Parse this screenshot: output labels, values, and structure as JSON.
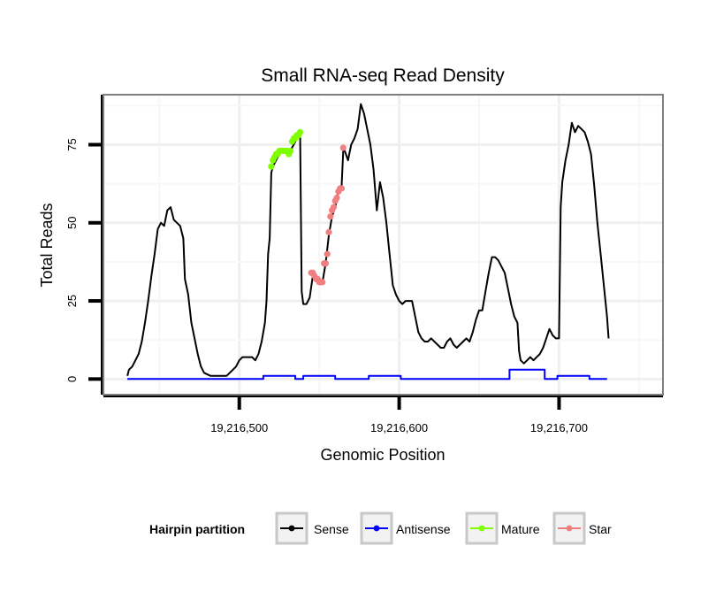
{
  "chart_data": {
    "type": "line",
    "title": "Small RNA-seq Read Density",
    "xlabel": "Genomic Position",
    "ylabel": "Total Reads",
    "xlim": [
      19216415,
      19216765
    ],
    "ylim": [
      -5,
      91
    ],
    "x_ticks": [
      19216500,
      19216600,
      19216700
    ],
    "x_tick_labels": [
      "19,216,500",
      "19,216,600",
      "19,216,700"
    ],
    "y_ticks": [
      0,
      25,
      50,
      75
    ],
    "y_tick_labels": [
      "0",
      "25",
      "50",
      "75"
    ],
    "grid": true,
    "legend": {
      "title": "Hairpin partition",
      "position": "bottom",
      "entries": [
        {
          "label": "Sense",
          "color": "#000000"
        },
        {
          "label": "Antisense",
          "color": "#0000ff"
        },
        {
          "label": "Mature",
          "color": "#7fff00"
        },
        {
          "label": "Star",
          "color": "#f08080"
        }
      ]
    },
    "series": [
      {
        "name": "Sense",
        "color": "#000000",
        "style": "line",
        "points": [
          [
            19216430,
            1
          ],
          [
            19216431,
            3
          ],
          [
            19216433,
            4
          ],
          [
            19216435,
            6
          ],
          [
            19216437,
            8
          ],
          [
            19216439,
            12
          ],
          [
            19216441,
            18
          ],
          [
            19216443,
            25
          ],
          [
            19216445,
            33
          ],
          [
            19216447,
            40
          ],
          [
            19216449,
            48
          ],
          [
            19216451,
            50
          ],
          [
            19216453,
            49
          ],
          [
            19216455,
            54
          ],
          [
            19216457,
            55
          ],
          [
            19216459,
            51
          ],
          [
            19216461,
            50
          ],
          [
            19216463,
            49
          ],
          [
            19216465,
            45
          ],
          [
            19216466,
            32
          ],
          [
            19216468,
            27
          ],
          [
            19216470,
            18
          ],
          [
            19216472,
            13
          ],
          [
            19216474,
            8
          ],
          [
            19216476,
            4
          ],
          [
            19216478,
            2
          ],
          [
            19216482,
            1
          ],
          [
            19216488,
            1
          ],
          [
            19216492,
            1
          ],
          [
            19216494,
            2
          ],
          [
            19216496,
            3
          ],
          [
            19216498,
            4
          ],
          [
            19216500,
            6
          ],
          [
            19216502,
            7
          ],
          [
            19216506,
            7
          ],
          [
            19216508,
            7
          ],
          [
            19216510,
            6
          ],
          [
            19216512,
            8
          ],
          [
            19216514,
            12
          ],
          [
            19216516,
            18
          ],
          [
            19216517,
            25
          ],
          [
            19216518,
            40
          ],
          [
            19216519,
            45
          ],
          [
            19216520,
            66
          ],
          [
            19216521,
            68
          ],
          [
            19216523,
            70
          ],
          [
            19216525,
            72
          ],
          [
            19216527,
            73
          ],
          [
            19216529,
            73
          ],
          [
            19216531,
            73
          ],
          [
            19216533,
            74
          ],
          [
            19216535,
            76
          ],
          [
            19216537,
            78
          ],
          [
            19216538,
            79
          ],
          [
            19216539,
            28
          ],
          [
            19216540,
            24
          ],
          [
            19216542,
            24
          ],
          [
            19216544,
            26
          ],
          [
            19216546,
            33
          ],
          [
            19216548,
            32
          ],
          [
            19216550,
            31
          ],
          [
            19216552,
            31
          ],
          [
            19216554,
            37
          ],
          [
            19216556,
            46
          ],
          [
            19216558,
            52
          ],
          [
            19216560,
            55
          ],
          [
            19216562,
            60
          ],
          [
            19216564,
            62
          ],
          [
            19216565,
            73
          ],
          [
            19216566,
            73
          ],
          [
            19216568,
            70
          ],
          [
            19216570,
            75
          ],
          [
            19216572,
            77
          ],
          [
            19216574,
            80
          ],
          [
            19216576,
            88
          ],
          [
            19216578,
            85
          ],
          [
            19216580,
            80
          ],
          [
            19216582,
            75
          ],
          [
            19216584,
            67
          ],
          [
            19216586,
            54
          ],
          [
            19216588,
            63
          ],
          [
            19216590,
            58
          ],
          [
            19216592,
            50
          ],
          [
            19216594,
            40
          ],
          [
            19216596,
            30
          ],
          [
            19216598,
            27
          ],
          [
            19216600,
            25
          ],
          [
            19216602,
            24
          ],
          [
            19216604,
            25
          ],
          [
            19216608,
            25
          ],
          [
            19216610,
            20
          ],
          [
            19216612,
            15
          ],
          [
            19216614,
            13
          ],
          [
            19216616,
            12
          ],
          [
            19216618,
            12
          ],
          [
            19216620,
            13
          ],
          [
            19216622,
            12
          ],
          [
            19216624,
            11
          ],
          [
            19216626,
            10
          ],
          [
            19216628,
            10
          ],
          [
            19216630,
            12
          ],
          [
            19216632,
            13
          ],
          [
            19216634,
            11
          ],
          [
            19216636,
            10
          ],
          [
            19216638,
            11
          ],
          [
            19216640,
            12
          ],
          [
            19216642,
            13
          ],
          [
            19216644,
            12
          ],
          [
            19216646,
            15
          ],
          [
            19216648,
            19
          ],
          [
            19216650,
            22
          ],
          [
            19216652,
            22
          ],
          [
            19216654,
            28
          ],
          [
            19216656,
            34
          ],
          [
            19216658,
            39
          ],
          [
            19216660,
            39
          ],
          [
            19216662,
            38
          ],
          [
            19216664,
            36
          ],
          [
            19216666,
            34
          ],
          [
            19216668,
            29
          ],
          [
            19216670,
            24
          ],
          [
            19216672,
            20
          ],
          [
            19216674,
            18
          ],
          [
            19216675,
            9
          ],
          [
            19216676,
            6
          ],
          [
            19216678,
            5
          ],
          [
            19216680,
            6
          ],
          [
            19216682,
            7
          ],
          [
            19216684,
            6
          ],
          [
            19216686,
            7
          ],
          [
            19216688,
            8
          ],
          [
            19216690,
            10
          ],
          [
            19216692,
            13
          ],
          [
            19216694,
            16
          ],
          [
            19216696,
            14
          ],
          [
            19216698,
            13
          ],
          [
            19216700,
            13
          ],
          [
            19216701,
            55
          ],
          [
            19216702,
            63
          ],
          [
            19216704,
            70
          ],
          [
            19216706,
            75
          ],
          [
            19216708,
            82
          ],
          [
            19216710,
            79
          ],
          [
            19216712,
            81
          ],
          [
            19216714,
            80
          ],
          [
            19216716,
            79
          ],
          [
            19216718,
            76
          ],
          [
            19216720,
            72
          ],
          [
            19216722,
            62
          ],
          [
            19216724,
            50
          ],
          [
            19216726,
            40
          ],
          [
            19216728,
            30
          ],
          [
            19216730,
            20
          ],
          [
            19216731,
            13
          ]
        ]
      },
      {
        "name": "Antisense",
        "color": "#0000ff",
        "style": "step",
        "points": [
          [
            19216430,
            0
          ],
          [
            19216514,
            0
          ],
          [
            19216515,
            1
          ],
          [
            19216534,
            1
          ],
          [
            19216535,
            0
          ],
          [
            19216539,
            0
          ],
          [
            19216540,
            1
          ],
          [
            19216559,
            1
          ],
          [
            19216560,
            0
          ],
          [
            19216580,
            0
          ],
          [
            19216581,
            1
          ],
          [
            19216600,
            1
          ],
          [
            19216601,
            0
          ],
          [
            19216668,
            0
          ],
          [
            19216669,
            3
          ],
          [
            19216690,
            3
          ],
          [
            19216691,
            0
          ],
          [
            19216698,
            0
          ],
          [
            19216699,
            1
          ],
          [
            19216718,
            1
          ],
          [
            19216719,
            0
          ],
          [
            19216730,
            0
          ]
        ]
      },
      {
        "name": "Mature",
        "color": "#7fff00",
        "style": "points",
        "points": [
          [
            19216520,
            68
          ],
          [
            19216521,
            70
          ],
          [
            19216522,
            71
          ],
          [
            19216523,
            72
          ],
          [
            19216524,
            72
          ],
          [
            19216525,
            73
          ],
          [
            19216526,
            73
          ],
          [
            19216527,
            73
          ],
          [
            19216528,
            73
          ],
          [
            19216529,
            73
          ],
          [
            19216530,
            73
          ],
          [
            19216531,
            72
          ],
          [
            19216532,
            73
          ],
          [
            19216533,
            76
          ],
          [
            19216534,
            77
          ],
          [
            19216535,
            77
          ],
          [
            19216536,
            78
          ],
          [
            19216537,
            78
          ],
          [
            19216538,
            79
          ]
        ]
      },
      {
        "name": "Star",
        "color": "#f08080",
        "style": "points",
        "points": [
          [
            19216545,
            34
          ],
          [
            19216546,
            34
          ],
          [
            19216547,
            33
          ],
          [
            19216548,
            32
          ],
          [
            19216549,
            32
          ],
          [
            19216550,
            31
          ],
          [
            19216551,
            31
          ],
          [
            19216552,
            31
          ],
          [
            19216553,
            37
          ],
          [
            19216554,
            37
          ],
          [
            19216555,
            40
          ],
          [
            19216556,
            47
          ],
          [
            19216557,
            52
          ],
          [
            19216558,
            54
          ],
          [
            19216559,
            55
          ],
          [
            19216560,
            57
          ],
          [
            19216561,
            58
          ],
          [
            19216562,
            60
          ],
          [
            19216563,
            61
          ],
          [
            19216564,
            61
          ],
          [
            19216565,
            74
          ]
        ]
      }
    ]
  }
}
